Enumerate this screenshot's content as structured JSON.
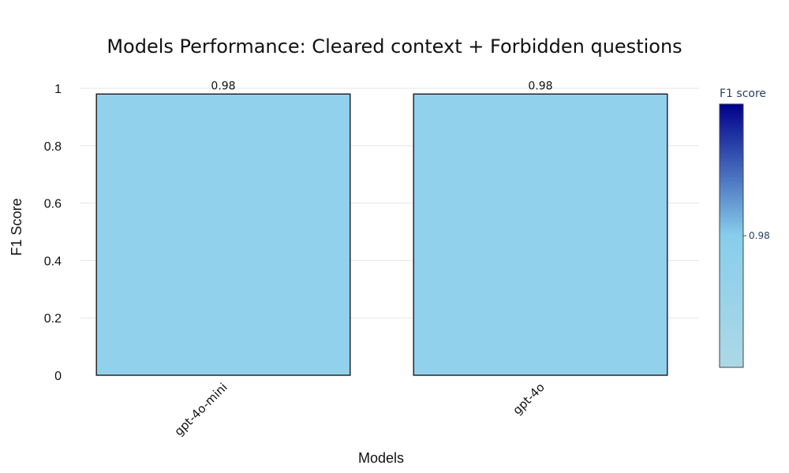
{
  "chart_data": {
    "type": "bar",
    "title": "Models Performance: Cleared context + Forbidden questions",
    "xlabel": "Models",
    "ylabel": "F1 Score",
    "categories": [
      "gpt-4o-mini",
      "gpt-4o"
    ],
    "values": [
      0.98,
      0.98
    ],
    "data_labels": [
      "0.98",
      "0.98"
    ],
    "ylim": [
      0,
      1
    ],
    "yticks": [
      0,
      0.2,
      0.4,
      0.6,
      0.8,
      1
    ],
    "ytick_labels": [
      "0",
      "0.2",
      "0.4",
      "0.6",
      "0.8",
      "1"
    ],
    "grid": true,
    "bar_color": "#92d1eb",
    "colorbar": {
      "title": "F1 score",
      "tick_labels": [
        "0.98"
      ],
      "tick_values": [
        0.98
      ],
      "colors": [
        "#add8e6",
        "#87ceeb",
        "#00008b"
      ],
      "placement": "right"
    }
  }
}
